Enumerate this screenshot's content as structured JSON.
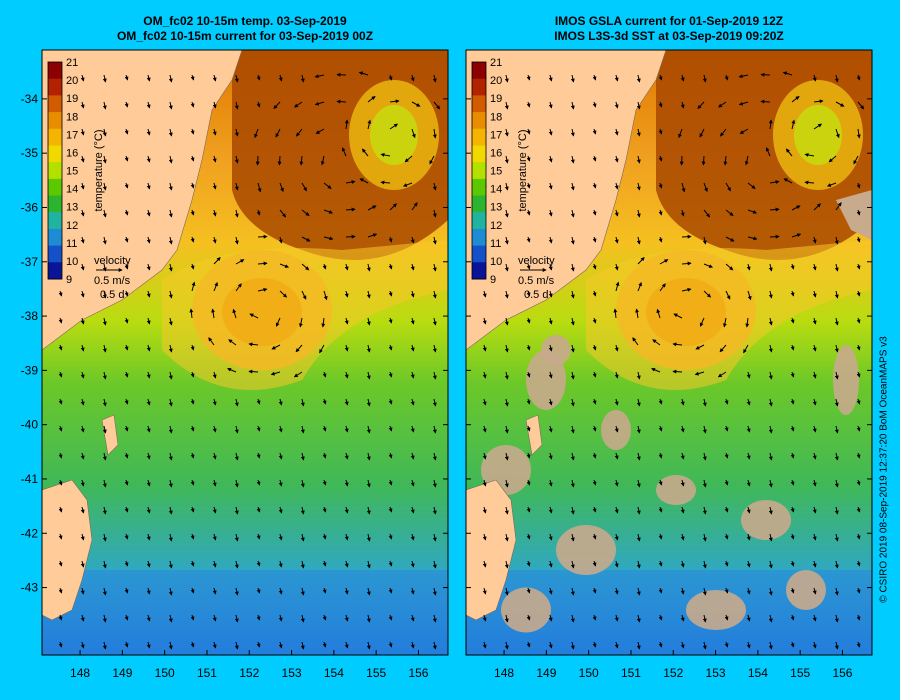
{
  "panels": [
    {
      "id": "model",
      "title_line1": "OM_fc02 10-15m temp. 03-Sep-2019",
      "title_line2": "OM_fc02 10-15m current for 03-Sep-2019 00Z"
    },
    {
      "id": "obs",
      "title_line1": "IMOS GSLA current for 01-Sep-2019 12Z",
      "title_line2": "IMOS L3S-3d SST at 03-Sep-2019 09:20Z"
    }
  ],
  "colorbar": {
    "label": "temperature (°C)",
    "ticks": [
      "21",
      "20",
      "19",
      "18",
      "17",
      "16",
      "15",
      "14",
      "13",
      "12",
      "11",
      "10",
      "9"
    ],
    "colors": [
      "#8b0000",
      "#b22200",
      "#d25a00",
      "#e88c00",
      "#f5b400",
      "#f0d800",
      "#b4e000",
      "#5cc800",
      "#2cb430",
      "#20b4a0",
      "#1e8cd2",
      "#1450c8",
      "#0a1496"
    ]
  },
  "velocity_legend": {
    "title": "velocity",
    "speed": "0.5 m/s",
    "duration": "0.5 d"
  },
  "axes": {
    "lat_labels": [
      "-34",
      "-35",
      "-36",
      "-37",
      "-38",
      "-39",
      "-40",
      "-41",
      "-42",
      "-43"
    ],
    "lon_labels": [
      "148",
      "149",
      "150",
      "151",
      "152",
      "153",
      "154",
      "155",
      "156"
    ]
  },
  "colors": {
    "background": "#00ccff",
    "land": "#ffcc99",
    "missing_data": "#c8aa8c"
  },
  "credit": "© CSIRO 2019   08-Sep-2019 12:37:20 BoM OceanMAPS v3"
}
